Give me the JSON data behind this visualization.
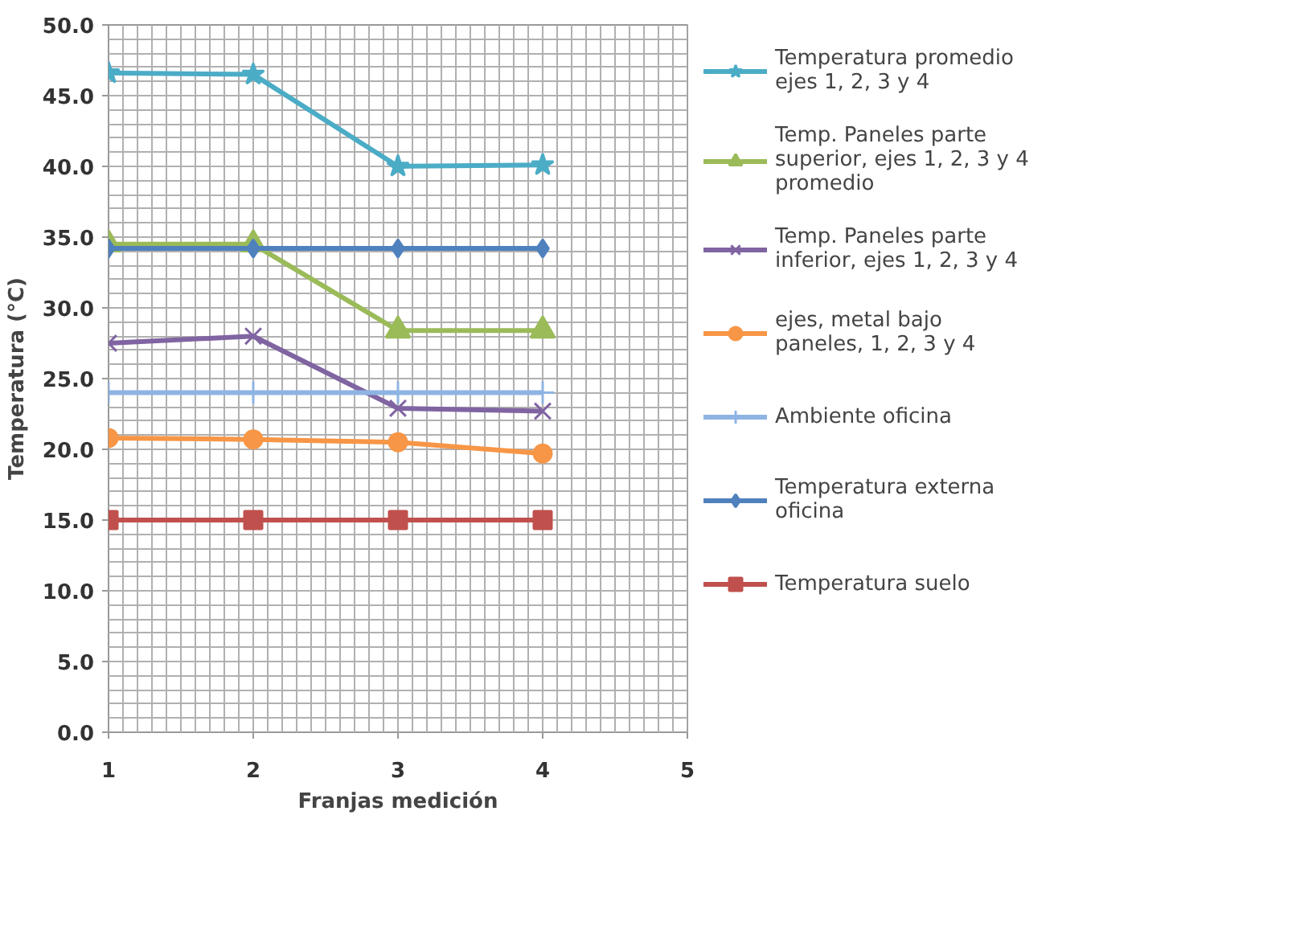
{
  "chart_data": {
    "type": "line",
    "xlabel": "Franjas medición",
    "ylabel": "Temperatura (°C)",
    "x": [
      1,
      2,
      3,
      4
    ],
    "xlim": [
      1,
      5
    ],
    "xticks": [
      1,
      2,
      3,
      4,
      5
    ],
    "ylim": [
      0,
      50
    ],
    "yticks": [
      {
        "value": 0,
        "label": "0.0"
      },
      {
        "value": 5,
        "label": "5.0"
      },
      {
        "value": 10,
        "label": "10.0"
      },
      {
        "value": 15,
        "label": "15.0"
      },
      {
        "value": 20,
        "label": "20.0"
      },
      {
        "value": 25,
        "label": "25.0"
      },
      {
        "value": 30,
        "label": "30.0"
      },
      {
        "value": 35,
        "label": "35.0"
      },
      {
        "value": 40,
        "label": "40.0"
      },
      {
        "value": 45,
        "label": "45.0"
      },
      {
        "value": 50,
        "label": "50.0"
      }
    ],
    "grid": true,
    "legend": "right",
    "series": [
      {
        "name": "Temperatura promedio\nejes 1, 2, 3 y 4",
        "color": "#4bacc6",
        "marker": "star",
        "values": [
          46.6,
          46.5,
          40.0,
          40.1
        ]
      },
      {
        "name": "Temp. Paneles parte\nsuperior, ejes 1, 2, 3 y 4\npromedio",
        "color": "#9bbb59",
        "marker": "triangle",
        "values": [
          34.5,
          34.5,
          28.4,
          28.4
        ]
      },
      {
        "name": "Temp. Paneles parte\ninferior, ejes 1, 2, 3 y 4",
        "color": "#8064a2",
        "marker": "x",
        "values": [
          27.5,
          28.0,
          22.9,
          22.7
        ]
      },
      {
        "name": "ejes, metal bajo\npaneles, 1, 2, 3 y 4",
        "color": "#f79646",
        "marker": "circle",
        "values": [
          20.8,
          20.7,
          20.5,
          19.7
        ]
      },
      {
        "name": "Ambiente oficina",
        "color": "#8eb4e3",
        "marker": "cross",
        "values": [
          24.0,
          24.0,
          24.0,
          24.0
        ]
      },
      {
        "name": "Temperatura externa\noficina",
        "color": "#4f81bd",
        "marker": "diamond",
        "values": [
          34.2,
          34.2,
          34.2,
          34.2
        ]
      },
      {
        "name": "Temperatura suelo",
        "color": "#c0504d",
        "marker": "square",
        "values": [
          15.0,
          15.0,
          15.0,
          15.0
        ]
      }
    ]
  }
}
